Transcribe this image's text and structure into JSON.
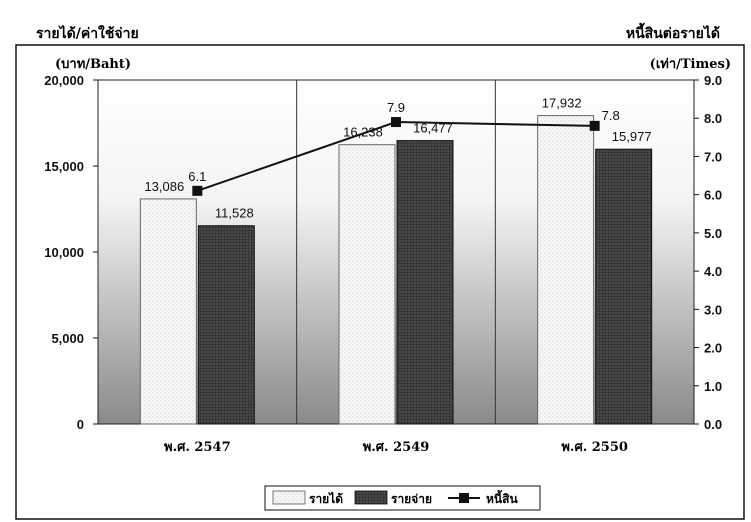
{
  "chart_data": {
    "type": "bar",
    "title_left": "รายได้/ค่าใช้จ่าย",
    "title_right": "หนี้สินต่อรายได้",
    "ylabel_left": "(บาท/Baht)",
    "ylabel_right": "(เท่า/Times)",
    "categories": [
      "พ.ศ. 2547",
      "พ.ศ. 2549",
      "พ.ศ. 2550"
    ],
    "ylim_left": [
      0,
      20000
    ],
    "ylim_right": [
      0,
      9.0
    ],
    "yticks_left": [
      "0",
      "5,000",
      "10,000",
      "15,000",
      "20,000"
    ],
    "yticks_right": [
      "0.0",
      "1.0",
      "2.0",
      "3.0",
      "4.0",
      "5.0",
      "6.0",
      "7.0",
      "8.0",
      "9.0"
    ],
    "series": [
      {
        "name": "รายได้",
        "kind": "bar",
        "axis": "left",
        "color": "#f2f2f2",
        "values": [
          13086,
          16238,
          17932
        ],
        "labels": [
          "13,086",
          "16,238",
          "17,932"
        ]
      },
      {
        "name": "รายจ่าย",
        "kind": "bar",
        "axis": "left",
        "color": "#3a3a3a",
        "values": [
          11528,
          16477,
          15977
        ],
        "labels": [
          "11,528",
          "16,477",
          "15,977"
        ]
      },
      {
        "name": "หนี้สิน",
        "kind": "line",
        "axis": "right",
        "color": "#111111",
        "values": [
          6.1,
          7.9,
          7.8
        ],
        "labels": [
          "6.1",
          "7.9",
          "7.8"
        ]
      }
    ],
    "legend_position": "bottom",
    "grid": "vertical-separators"
  }
}
